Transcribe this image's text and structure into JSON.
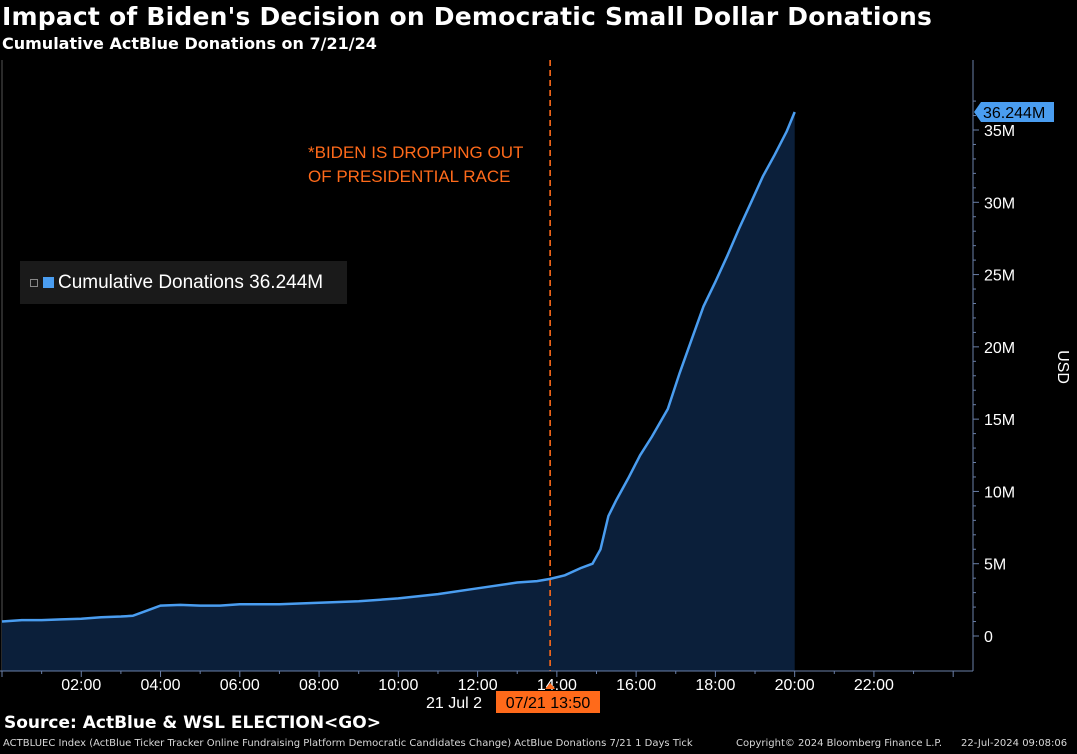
{
  "header": {
    "title": "Impact of Biden's Decision on Democratic Small Dollar Donations",
    "subtitle": "Cumulative ActBlue Donations on 7/21/24"
  },
  "legend": {
    "label": "Cumulative Donations 36.244M"
  },
  "annotation": {
    "lines": [
      "*BIDEN IS DROPPING OUT",
      "OF PRESIDENTIAL RACE"
    ]
  },
  "source": "Source: ActBlue & WSL ELECTION<GO>",
  "footer": {
    "left": "ACTBLUEC Index (ActBlue Ticker Tracker Online Fundraising Platform Democratic Candidates Change) ActBlue Donations 7/21 1 Days  Tick",
    "copyright": "Copyright© 2024 Bloomberg Finance L.P.",
    "timestamp": "22-Jul-2024 09:08:06"
  },
  "colors": {
    "line": "#4a9df0",
    "fill": "#0b1f3a",
    "accent": "#ff6a1a",
    "last_value_bg": "#4a9df0"
  },
  "chart_data": {
    "type": "area",
    "title": "Impact of Biden's Decision on Democratic Small Dollar Donations",
    "subtitle": "Cumulative ActBlue Donations on 7/21/24",
    "ylabel": "USD",
    "xlabel": "",
    "ylim": [
      -1,
      39
    ],
    "xlim_hours": [
      0,
      24.5
    ],
    "y_ticks": [
      0,
      5,
      10,
      15,
      20,
      25,
      30,
      35
    ],
    "y_tick_labels": [
      "0",
      "5M",
      "10M",
      "15M",
      "20M",
      "25M",
      "30M",
      "35M"
    ],
    "x_ticks": [
      2,
      4,
      6,
      8,
      10,
      12,
      14,
      16,
      18,
      20,
      22
    ],
    "x_tick_labels": [
      "02:00",
      "04:00",
      "06:00",
      "08:00",
      "10:00",
      "12:00",
      "14:00",
      "16:00",
      "18:00",
      "20:00",
      "22:00"
    ],
    "date_label": "21 Jul 2",
    "event": {
      "time": "07/21 13:50",
      "hour": 13.83,
      "label": "*BIDEN IS DROPPING OUT OF PRESIDENTIAL RACE"
    },
    "last_value_label": "36.244M",
    "series": [
      {
        "name": "Cumulative Donations",
        "last_value": 36.244,
        "x_hours": [
          0.0,
          0.5,
          1.0,
          1.5,
          2.0,
          2.5,
          3.0,
          3.3,
          3.6,
          4.0,
          4.5,
          5.0,
          5.5,
          6.0,
          7.0,
          8.0,
          9.0,
          10.0,
          11.0,
          12.0,
          13.0,
          13.5,
          13.83,
          14.2,
          14.6,
          14.9,
          15.1,
          15.3,
          15.5,
          15.8,
          16.1,
          16.4,
          16.8,
          17.1,
          17.4,
          17.7,
          18.0,
          18.3,
          18.6,
          18.9,
          19.2,
          19.5,
          19.8,
          20.0
        ],
        "values": [
          1.0,
          1.1,
          1.1,
          1.15,
          1.2,
          1.3,
          1.35,
          1.4,
          1.7,
          2.1,
          2.15,
          2.1,
          2.1,
          2.2,
          2.2,
          2.3,
          2.4,
          2.6,
          2.9,
          3.3,
          3.7,
          3.8,
          3.95,
          4.2,
          4.7,
          5.0,
          6.0,
          8.3,
          9.4,
          10.9,
          12.5,
          13.8,
          15.7,
          18.2,
          20.5,
          22.8,
          24.5,
          26.3,
          28.2,
          30.0,
          31.8,
          33.3,
          34.9,
          36.244
        ]
      }
    ]
  }
}
